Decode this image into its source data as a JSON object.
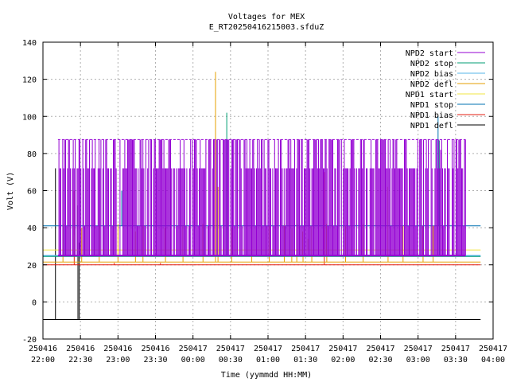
{
  "chart_data": {
    "type": "line",
    "title": "Voltages for MEX",
    "subtitle": "E_RT20250416215003.sfduZ",
    "xlabel": "Time (yymmdd HH:MM)",
    "ylabel": "Volt (V)",
    "xlim": [
      "250416 22:00",
      "250417 04:00"
    ],
    "ylim": [
      -20,
      140
    ],
    "grid": true,
    "legend_position": "top-right",
    "x_ticks": [
      {
        "date": "250416",
        "time": "22:00"
      },
      {
        "date": "250416",
        "time": "22:30"
      },
      {
        "date": "250416",
        "time": "23:00"
      },
      {
        "date": "250416",
        "time": "23:30"
      },
      {
        "date": "250417",
        "time": "00:00"
      },
      {
        "date": "250417",
        "time": "00:30"
      },
      {
        "date": "250417",
        "time": "01:00"
      },
      {
        "date": "250417",
        "time": "01:30"
      },
      {
        "date": "250417",
        "time": "02:00"
      },
      {
        "date": "250417",
        "time": "02:30"
      },
      {
        "date": "250417",
        "time": "03:00"
      },
      {
        "date": "250417",
        "time": "03:30"
      },
      {
        "date": "250417",
        "time": "04:00"
      }
    ],
    "y_ticks": [
      "140",
      "120",
      "100",
      "80",
      "60",
      "40",
      "20",
      "0",
      "-20"
    ],
    "series": [
      {
        "name": "NPD2 start",
        "color": "#9400d3",
        "start": "250416 22:12",
        "end": "250417 03:38",
        "baseline": 25,
        "high": 87.5,
        "mid": 72,
        "spikes": [
          {
            "t": "250417 03:18",
            "v": 82
          }
        ]
      },
      {
        "name": "NPD2 stop",
        "color": "#009e73",
        "start": "250416 22:00",
        "end": "250417 03:50",
        "baseline": 24.5,
        "spikes": [
          {
            "t": "250417 00:27",
            "v": 102
          },
          {
            "t": "250417 03:17",
            "v": 87
          }
        ]
      },
      {
        "name": "NPD2 bias",
        "color": "#56b4e9",
        "start": "250416 22:00",
        "end": "250417 03:50",
        "baseline": 24.8,
        "spikes": [
          {
            "t": "250416 22:17",
            "v": 41
          },
          {
            "t": "250417 00:09",
            "v": 41
          },
          {
            "t": "250417 03:02",
            "v": 41
          }
        ]
      },
      {
        "name": "NPD2 defl",
        "color": "#e69f00",
        "start": "250416 22:00",
        "end": "250417 03:50",
        "baseline": 21.5,
        "spikes": [
          {
            "t": "250416 22:16",
            "v": 42
          },
          {
            "t": "250416 22:31",
            "v": 40
          },
          {
            "t": "250416 22:45",
            "v": 41
          },
          {
            "t": "250416 23:00",
            "v": 42
          },
          {
            "t": "250416 23:14",
            "v": 38
          },
          {
            "t": "250416 23:20",
            "v": 41
          },
          {
            "t": "250416 23:38",
            "v": 40
          },
          {
            "t": "250416 23:52",
            "v": 41
          },
          {
            "t": "250417 00:08",
            "v": 42
          },
          {
            "t": "250417 00:18",
            "v": 124
          },
          {
            "t": "250417 00:20",
            "v": 62
          },
          {
            "t": "250417 00:31",
            "v": 40
          },
          {
            "t": "250417 00:47",
            "v": 41
          },
          {
            "t": "250417 01:01",
            "v": 41
          },
          {
            "t": "250417 01:13",
            "v": 42
          },
          {
            "t": "250417 01:19",
            "v": 40
          },
          {
            "t": "250417 01:23",
            "v": 42
          },
          {
            "t": "250417 01:28",
            "v": 38
          },
          {
            "t": "250417 01:35",
            "v": 41
          },
          {
            "t": "250417 01:47",
            "v": 42
          },
          {
            "t": "250417 02:02",
            "v": 41
          },
          {
            "t": "250417 02:16",
            "v": 42
          },
          {
            "t": "250417 02:36",
            "v": 62
          },
          {
            "t": "250417 02:48",
            "v": 41
          },
          {
            "t": "250417 03:04",
            "v": 41
          },
          {
            "t": "250417 03:12",
            "v": 41
          }
        ]
      },
      {
        "name": "NPD1 start",
        "color": "#f0e442",
        "start": "250416 22:00",
        "end": "250417 03:50",
        "baseline": 28,
        "spikes": [
          {
            "t": "250416 22:25",
            "v": 36
          },
          {
            "t": "250417 01:32",
            "v": 34
          }
        ]
      },
      {
        "name": "NPD1 stop",
        "color": "#0072b2",
        "start": "250416 22:00",
        "end": "250417 03:50",
        "baseline": 41,
        "spikes": [
          {
            "t": "250416 23:03",
            "v": 60
          },
          {
            "t": "250417 03:16",
            "v": 100
          }
        ]
      },
      {
        "name": "NPD1 bias",
        "color": "#e51e10",
        "start": "250416 22:00",
        "end": "250417 03:50",
        "baseline": 20,
        "spikes": [
          {
            "t": "250416 22:25",
            "v": 60
          },
          {
            "t": "250416 22:57",
            "v": 21
          },
          {
            "t": "250416 23:34",
            "v": 21
          },
          {
            "t": "250417 01:45",
            "v": 70
          }
        ]
      },
      {
        "name": "NPD1 defl",
        "color": "#000000",
        "start": "250416 22:00",
        "end": "250417 03:50",
        "baseline": -9.5,
        "spikes": [
          {
            "t": "250416 22:10",
            "v": 72
          },
          {
            "t": "250416 22:28",
            "v": 52
          },
          {
            "t": "250416 22:29",
            "v": 32
          }
        ]
      }
    ]
  }
}
